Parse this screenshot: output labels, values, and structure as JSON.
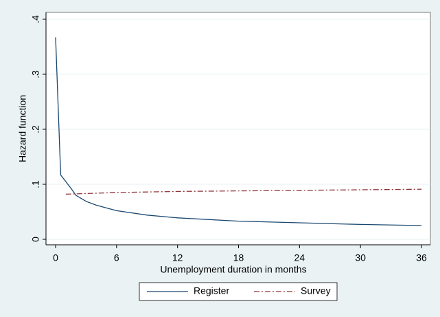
{
  "chart_data": {
    "type": "line",
    "xlabel": "Unemployment duration in months",
    "ylabel": "Hazard function",
    "xlim": [
      0,
      36
    ],
    "xticks": [
      0,
      6,
      12,
      18,
      24,
      30,
      36
    ],
    "ylim": [
      0,
      0.4
    ],
    "yticks": [
      0,
      {
        "value": 0.1,
        "label": ".1"
      },
      {
        "value": 0.2,
        "label": ".2"
      },
      {
        "value": 0.3,
        "label": ".3"
      },
      {
        "value": 0.4,
        "label": ".4"
      }
    ],
    "grid": true,
    "series": [
      {
        "name": "Register",
        "color": "#1a476f",
        "dash": "solid",
        "x": [
          0,
          0.5,
          1.5,
          2,
          3,
          4,
          6,
          9,
          12,
          18,
          24,
          30,
          36
        ],
        "values": [
          0.367,
          0.117,
          0.093,
          0.08,
          0.069,
          0.062,
          0.052,
          0.044,
          0.039,
          0.033,
          0.03,
          0.027,
          0.025
        ]
      },
      {
        "name": "Survey",
        "color": "#90353b",
        "dash": "dashdot",
        "x": [
          1,
          6,
          12,
          18,
          24,
          30,
          36
        ],
        "values": [
          0.082,
          0.085,
          0.087,
          0.088,
          0.089,
          0.09,
          0.091
        ]
      }
    ]
  }
}
